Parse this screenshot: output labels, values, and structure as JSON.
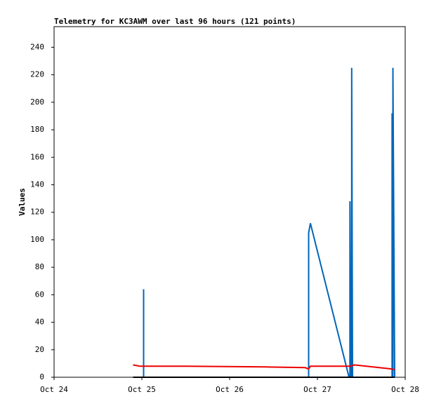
{
  "chart_data": {
    "type": "line",
    "title": "Telemetry for KC3AWM over last 96 hours (121 points)",
    "y_label": "Values",
    "xlim": [
      0,
      4
    ],
    "xticks": [
      {
        "value": 0,
        "label": "Oct 24"
      },
      {
        "value": 1,
        "label": "Oct 25"
      },
      {
        "value": 2,
        "label": "Oct 26"
      },
      {
        "value": 3,
        "label": "Oct 27"
      },
      {
        "value": 4,
        "label": "Oct 28"
      }
    ],
    "ylim": [
      0,
      255
    ],
    "yticks": [
      0,
      20,
      40,
      60,
      80,
      100,
      120,
      140,
      160,
      180,
      200,
      220,
      240
    ],
    "series": [
      {
        "color": "#0066bb",
        "x": [
          0.9,
          1.02,
          1.02,
          1.02,
          2.9,
          2.9,
          2.92,
          3.36,
          3.37,
          3.37,
          3.38,
          3.39,
          3.39,
          3.4,
          3.85,
          3.85,
          3.86,
          3.86,
          3.88
        ],
        "values": [
          0,
          0,
          64,
          0,
          0,
          105,
          112,
          0,
          0,
          128,
          0,
          0,
          225,
          0,
          0,
          192,
          0,
          225,
          0
        ]
      },
      {
        "color": "#ee0000",
        "x": [
          0.9,
          0.98,
          1.5,
          2.42,
          2.86,
          2.9,
          2.92,
          3.38,
          3.42,
          3.85,
          3.88
        ],
        "values": [
          9,
          8,
          8,
          7.5,
          7,
          6,
          8,
          8,
          9,
          6,
          5.5
        ]
      },
      {
        "color": "#000000",
        "x": [
          0.9,
          3.88
        ],
        "values": [
          0,
          0
        ]
      }
    ]
  }
}
